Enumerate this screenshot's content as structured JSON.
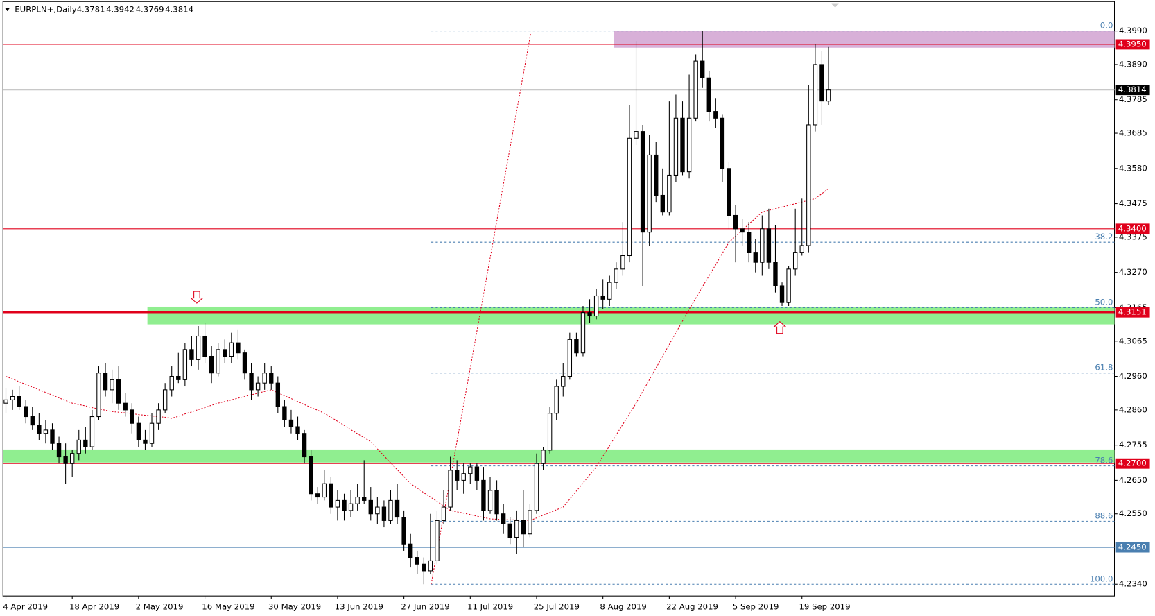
{
  "chart_data": {
    "type": "candlestick",
    "title": "EURPLN+,Daily",
    "categories": [
      "4 Apr 2019",
      null,
      null,
      null,
      null,
      null,
      null,
      null,
      null,
      null,
      "18 Apr 2019",
      null,
      null,
      null,
      null,
      null,
      null,
      null,
      null,
      null,
      "2 May 2019",
      null,
      null,
      null,
      null,
      null,
      null,
      null,
      null,
      null,
      "16 May 2019",
      null,
      null,
      null,
      null,
      null,
      null,
      null,
      null,
      null,
      "30 May 2019",
      null,
      null,
      null,
      null,
      null,
      null,
      null,
      null,
      null,
      "13 Jun 2019",
      null,
      null,
      null,
      null,
      null,
      null,
      null,
      null,
      null,
      "27 Jun 2019",
      null,
      null,
      null,
      null,
      null,
      null,
      null,
      null,
      null,
      "11 Jul 2019",
      null,
      null,
      null,
      null,
      null,
      null,
      null,
      null,
      null,
      "25 Jul 2019",
      null,
      null,
      null,
      null,
      null,
      null,
      null,
      null,
      null,
      "8 Aug 2019",
      null,
      null,
      null,
      null,
      null,
      null,
      null,
      null,
      null,
      "22 Aug 2019",
      null,
      null,
      null,
      null,
      null,
      null,
      null,
      null,
      null,
      "5 Sep 2019",
      null,
      null,
      null,
      null,
      null,
      null,
      null,
      null,
      null,
      "19 Sep 2019",
      null,
      null,
      null,
      null
    ],
    "ohlc": [
      [
        4.288,
        4.2925,
        4.285,
        4.289
      ],
      [
        4.289,
        4.292,
        4.286,
        4.29
      ],
      [
        4.29,
        4.293,
        4.286,
        4.287
      ],
      [
        4.287,
        4.289,
        4.282,
        4.284
      ],
      [
        4.284,
        4.287,
        4.28,
        4.2815
      ],
      [
        4.2815,
        4.285,
        4.277,
        4.279
      ],
      [
        4.279,
        4.283,
        4.276,
        4.28
      ],
      [
        4.28,
        4.282,
        4.274,
        4.276
      ],
      [
        4.276,
        4.278,
        4.27,
        4.272
      ],
      [
        4.272,
        4.276,
        4.264,
        4.27
      ],
      [
        4.27,
        4.274,
        4.266,
        4.273
      ],
      [
        4.273,
        4.28,
        4.271,
        4.277
      ],
      [
        4.277,
        4.281,
        4.273,
        4.275
      ],
      [
        4.275,
        4.286,
        4.274,
        4.284
      ],
      [
        4.284,
        4.299,
        4.283,
        4.297
      ],
      [
        4.297,
        4.3,
        4.29,
        4.292
      ],
      [
        4.292,
        4.298,
        4.288,
        4.295
      ],
      [
        4.295,
        4.299,
        4.286,
        4.288
      ],
      [
        4.288,
        4.291,
        4.284,
        4.286
      ],
      [
        4.286,
        4.288,
        4.279,
        4.282
      ],
      [
        4.282,
        4.284,
        4.275,
        4.277
      ],
      [
        4.277,
        4.28,
        4.274,
        4.276
      ],
      [
        4.276,
        4.285,
        4.275,
        4.282
      ],
      [
        4.282,
        4.288,
        4.28,
        4.286
      ],
      [
        4.286,
        4.294,
        4.285,
        4.292
      ],
      [
        4.292,
        4.299,
        4.29,
        4.296
      ],
      [
        4.296,
        4.303,
        4.294,
        4.295
      ],
      [
        4.295,
        4.306,
        4.293,
        4.304
      ],
      [
        4.304,
        4.308,
        4.299,
        4.301
      ],
      [
        4.301,
        4.311,
        4.298,
        4.308
      ],
      [
        4.308,
        4.312,
        4.3,
        4.302
      ],
      [
        4.302,
        4.305,
        4.294,
        4.297
      ],
      [
        4.297,
        4.306,
        4.296,
        4.304
      ],
      [
        4.304,
        4.307,
        4.3,
        4.302
      ],
      [
        4.302,
        4.309,
        4.3,
        4.306
      ],
      [
        4.306,
        4.31,
        4.301,
        4.303
      ],
      [
        4.303,
        4.304,
        4.295,
        4.297
      ],
      [
        4.297,
        4.3,
        4.289,
        4.292
      ],
      [
        4.292,
        4.296,
        4.29,
        4.294
      ],
      [
        4.294,
        4.3,
        4.292,
        4.297
      ],
      [
        4.297,
        4.299,
        4.292,
        4.294
      ],
      [
        4.294,
        4.296,
        4.285,
        4.287
      ],
      [
        4.287,
        4.289,
        4.281,
        4.283
      ],
      [
        4.283,
        4.286,
        4.279,
        4.281
      ],
      [
        4.281,
        4.284,
        4.277,
        4.279
      ],
      [
        4.279,
        4.28,
        4.27,
        4.272
      ],
      [
        4.272,
        4.274,
        4.259,
        4.261
      ],
      [
        4.261,
        4.263,
        4.258,
        4.26
      ],
      [
        4.26,
        4.268,
        4.259,
        4.264
      ],
      [
        4.264,
        4.266,
        4.255,
        4.257
      ],
      [
        4.257,
        4.262,
        4.253,
        4.259
      ],
      [
        4.259,
        4.261,
        4.253,
        4.256
      ],
      [
        4.256,
        4.262,
        4.254,
        4.258
      ],
      [
        4.258,
        4.264,
        4.256,
        4.26
      ],
      [
        4.26,
        4.271,
        4.258,
        4.259
      ],
      [
        4.259,
        4.263,
        4.253,
        4.255
      ],
      [
        4.255,
        4.26,
        4.252,
        4.257
      ],
      [
        4.257,
        4.259,
        4.251,
        4.253
      ],
      [
        4.253,
        4.262,
        4.252,
        4.259
      ],
      [
        4.259,
        4.264,
        4.252,
        4.254
      ],
      [
        4.254,
        4.256,
        4.244,
        4.246
      ],
      [
        4.246,
        4.249,
        4.239,
        4.242
      ],
      [
        4.242,
        4.244,
        4.237,
        4.24
      ],
      [
        4.24,
        4.242,
        4.234,
        4.238
      ],
      [
        4.238,
        4.255,
        4.237,
        4.241
      ],
      [
        4.241,
        4.256,
        4.24,
        4.253
      ],
      [
        4.253,
        4.262,
        4.252,
        4.257
      ],
      [
        4.257,
        4.272,
        4.256,
        4.268
      ],
      [
        4.268,
        4.271,
        4.262,
        4.265
      ],
      [
        4.265,
        4.27,
        4.261,
        4.267
      ],
      [
        4.267,
        4.27,
        4.264,
        4.269
      ],
      [
        4.269,
        4.27,
        4.262,
        4.265
      ],
      [
        4.265,
        4.269,
        4.253,
        4.256
      ],
      [
        4.256,
        4.266,
        4.255,
        4.262
      ],
      [
        4.262,
        4.265,
        4.253,
        4.255
      ],
      [
        4.255,
        4.258,
        4.249,
        4.252
      ],
      [
        4.252,
        4.254,
        4.246,
        4.248
      ],
      [
        4.248,
        4.256,
        4.243,
        4.253
      ],
      [
        4.253,
        4.262,
        4.245,
        4.249
      ],
      [
        4.249,
        4.258,
        4.248,
        4.256
      ],
      [
        4.256,
        4.273,
        4.255,
        4.27
      ],
      [
        4.27,
        4.275,
        4.268,
        4.274
      ],
      [
        4.274,
        4.287,
        4.273,
        4.285
      ],
      [
        4.285,
        4.295,
        4.283,
        4.293
      ],
      [
        4.293,
        4.3,
        4.29,
        4.296
      ],
      [
        4.296,
        4.309,
        4.295,
        4.307
      ],
      [
        4.307,
        4.309,
        4.302,
        4.303
      ],
      [
        4.303,
        4.317,
        4.302,
        4.315
      ],
      [
        4.315,
        4.319,
        4.312,
        4.314
      ],
      [
        4.314,
        4.322,
        4.313,
        4.32
      ],
      [
        4.32,
        4.325,
        4.316,
        4.319
      ],
      [
        4.319,
        4.326,
        4.317,
        4.324
      ],
      [
        4.324,
        4.33,
        4.322,
        4.328
      ],
      [
        4.328,
        4.342,
        4.326,
        4.332
      ],
      [
        4.332,
        4.377,
        4.33,
        4.367
      ],
      [
        4.367,
        4.396,
        4.365,
        4.369
      ],
      [
        4.369,
        4.371,
        4.323,
        4.339
      ],
      [
        4.339,
        4.368,
        4.335,
        4.362
      ],
      [
        4.362,
        4.366,
        4.348,
        4.35
      ],
      [
        4.35,
        4.358,
        4.344,
        4.345
      ],
      [
        4.345,
        4.378,
        4.344,
        4.356
      ],
      [
        4.356,
        4.38,
        4.354,
        4.373
      ],
      [
        4.373,
        4.378,
        4.356,
        4.357
      ],
      [
        4.357,
        4.386,
        4.355,
        4.373
      ],
      [
        4.373,
        4.392,
        4.372,
        4.39
      ],
      [
        4.39,
        4.399,
        4.382,
        4.385
      ],
      [
        4.385,
        4.387,
        4.372,
        4.375
      ],
      [
        4.375,
        4.379,
        4.37,
        4.373
      ],
      [
        4.373,
        4.374,
        4.354,
        4.358
      ],
      [
        4.358,
        4.36,
        4.34,
        4.344
      ],
      [
        4.344,
        4.347,
        4.33,
        4.34
      ],
      [
        4.34,
        4.343,
        4.335,
        4.339
      ],
      [
        4.339,
        4.342,
        4.33,
        4.333
      ],
      [
        4.333,
        4.337,
        4.327,
        4.33
      ],
      [
        4.33,
        4.344,
        4.326,
        4.34
      ],
      [
        4.34,
        4.346,
        4.328,
        4.33
      ],
      [
        4.33,
        4.341,
        4.321,
        4.323
      ],
      [
        4.323,
        4.324,
        4.317,
        4.318
      ],
      [
        4.318,
        4.329,
        4.317,
        4.328
      ],
      [
        4.328,
        4.346,
        4.326,
        4.333
      ],
      [
        4.333,
        4.349,
        4.332,
        4.335
      ],
      [
        4.335,
        4.383,
        4.333,
        4.371
      ],
      [
        4.371,
        4.395,
        4.369,
        4.389
      ],
      [
        4.389,
        4.393,
        4.371,
        4.3781
      ],
      [
        4.3781,
        4.3942,
        4.3769,
        4.3814
      ]
    ],
    "up_color": "#ffffff",
    "down_color": "#000000",
    "ma": {
      "color": "#e0001b",
      "values": [
        4.296,
        4.2952,
        4.2944,
        4.2936,
        4.2928,
        4.292,
        4.2912,
        4.2904,
        4.2896,
        4.2888,
        4.288,
        4.2876,
        4.2872,
        4.2867,
        4.2863,
        4.2859,
        4.2855,
        4.2853,
        4.2851,
        4.2849,
        4.2846,
        4.2844,
        4.2842,
        4.284,
        4.2838,
        4.2835,
        4.2841,
        4.2848,
        4.2854,
        4.2861,
        4.2867,
        4.2874,
        4.288,
        4.2885,
        4.289,
        4.2895,
        4.29,
        4.2905,
        4.291,
        4.2915,
        4.292,
        4.2911,
        4.2902,
        4.2894,
        4.2885,
        4.2876,
        4.2867,
        4.2859,
        4.285,
        4.2838,
        4.2826,
        4.2814,
        4.2801,
        4.2789,
        4.2777,
        4.2765,
        4.2744,
        4.2723,
        4.2702,
        4.2682,
        4.2661,
        4.264,
        4.2627,
        4.2613,
        4.26,
        4.2587,
        4.2573,
        4.256,
        4.2556,
        4.2552,
        4.2548,
        4.2543,
        4.2539,
        4.2535,
        4.2534,
        4.2533,
        4.2532,
        4.2532,
        4.2531,
        4.253,
        4.2538,
        4.2546,
        4.2554,
        4.2562,
        4.257,
        4.2594,
        4.2618,
        4.2642,
        4.2666,
        4.269,
        4.2722,
        4.2753,
        4.2785,
        4.2817,
        4.2848,
        4.288,
        4.2915,
        4.295,
        4.2985,
        4.302,
        4.3055,
        4.309,
        4.3125,
        4.316,
        4.3193,
        4.3227,
        4.326,
        4.3293,
        4.3327,
        4.336,
        4.3378,
        4.3396,
        4.3414,
        4.3432,
        4.345,
        4.3455,
        4.346,
        4.3465,
        4.347,
        4.3475,
        4.348,
        4.3485,
        4.349,
        4.3505,
        4.352
      ]
    },
    "ylim": [
      4.2305,
      4.4082
    ],
    "yticks": [
      {
        "value": 4.399,
        "label": "4.3990"
      },
      {
        "value": 4.389,
        "label": "4.3890"
      },
      4.3785,
      4.3685,
      {
        "value": 4.358,
        "label": "4.3580"
      },
      4.3475,
      4.3375,
      {
        "value": 4.327,
        "label": "4.3270"
      },
      4.3165,
      4.3065,
      {
        "value": 4.296,
        "label": "4.2960"
      },
      {
        "value": 4.286,
        "label": "4.2860"
      },
      4.2755,
      {
        "value": 4.265,
        "label": "4.2650"
      },
      {
        "value": 4.255,
        "label": "4.2550"
      },
      {
        "value": 4.234,
        "label": "4.2340"
      }
    ],
    "levels": [
      {
        "value": 4.395,
        "label": "4.3950",
        "color": "#e0001b"
      },
      {
        "value": 4.34,
        "label": "4.3400",
        "color": "#e0001b"
      },
      {
        "value": 4.3151,
        "label": "4.3151",
        "color": "#e0001b"
      },
      {
        "value": 4.27,
        "label": "4.2700",
        "color": "#e0001b"
      },
      {
        "value": 4.245,
        "label": "4.2450",
        "color": "#4a7fb0"
      }
    ],
    "zones": [
      {
        "from": 4.394,
        "to": 4.399,
        "color": "#d8b0d8"
      },
      {
        "from": 4.3115,
        "to": 4.3168,
        "color": "#90ee90"
      },
      {
        "from": 4.2703,
        "to": 4.2742,
        "color": "#90ee90"
      }
    ],
    "fibonacci": [
      {
        "label": "0.0",
        "price": 4.399
      },
      {
        "label": "38.2",
        "price": 4.336
      },
      {
        "label": "50.0",
        "price": 4.3165
      },
      {
        "label": "61.8",
        "price": 4.297
      },
      {
        "label": "78.6",
        "price": 4.2693
      },
      {
        "label": "88.6",
        "price": 4.2528
      },
      {
        "label": "100.0",
        "price": 4.234
      }
    ]
  }
}
